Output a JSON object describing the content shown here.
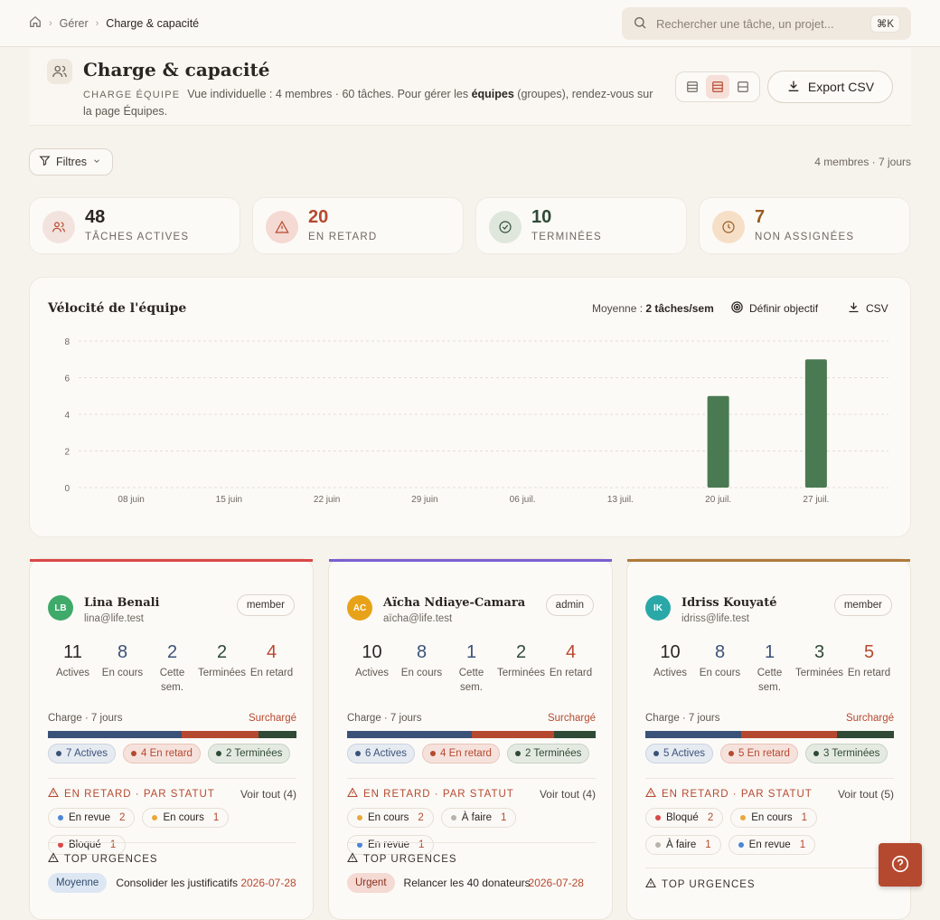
{
  "breadcrumb": {
    "items": [
      "Gérer",
      "Charge & capacité"
    ]
  },
  "search": {
    "placeholder": "Rechercher une tâche, un projet...",
    "shortcut": "⌘K"
  },
  "header": {
    "title": "Charge & capacité",
    "kicker": "CHARGE ÉQUIPE",
    "desc_1": "Vue individuelle : 4 membres · 60 tâches. Pour gérer les ",
    "desc_bold": "équipes",
    "desc_2": " (groupes), rendez-vous sur la page Équipes.",
    "export_label": "Export CSV",
    "view_selected": "rows"
  },
  "toolbar": {
    "filters_label": "Filtres",
    "meta": "4 membres · 7 jours"
  },
  "stats": [
    {
      "value": "48",
      "label": "TÂCHES ACTIVES",
      "color": "#2b2622",
      "bg": "#f3e3de",
      "icon": "users-icon"
    },
    {
      "value": "20",
      "label": "EN RETARD",
      "color": "#b5492f",
      "bg": "#f5d9d3",
      "icon": "alert-triangle-icon"
    },
    {
      "value": "10",
      "label": "TERMINÉES",
      "color": "#2f4a35",
      "bg": "#dfe7dc",
      "icon": "check-circle-icon"
    },
    {
      "value": "7",
      "label": "NON ASSIGNÉES",
      "color": "#9a5a1e",
      "bg": "#f6dfc7",
      "icon": "clock-icon"
    }
  ],
  "velocity": {
    "title": "Vélocité de l'équipe",
    "avg_label": "Moyenne : ",
    "avg_value": "2 tâches/sem",
    "goal_label": "Définir objectif",
    "csv_label": "CSV"
  },
  "chart_data": {
    "type": "bar",
    "categories": [
      "08 juin",
      "15 juin",
      "22 juin",
      "29 juin",
      "06 juil.",
      "13 juil.",
      "20 juil.",
      "27 juil."
    ],
    "values": [
      0,
      0,
      0,
      0,
      0,
      0,
      5,
      7
    ],
    "ylim": [
      0,
      8
    ],
    "yticks": [
      0,
      2,
      4,
      6,
      8
    ],
    "grid": true,
    "color": "#4a7a52"
  },
  "members": [
    {
      "stripe": "#d94848",
      "initials": "LB",
      "avatar_bg": "#3faa6a",
      "name": "Lina Benali",
      "email": "lina@life.test",
      "role": "member",
      "metrics": [
        {
          "v": "11",
          "l": "Actives",
          "c": "#2b2622"
        },
        {
          "v": "8",
          "l": "En cours",
          "c": "#3b5278"
        },
        {
          "v": "2",
          "l": "Cette sem.",
          "c": "#3b5278"
        },
        {
          "v": "2",
          "l": "Terminées",
          "c": "#2f4a35"
        },
        {
          "v": "4",
          "l": "En retard",
          "c": "#b5492f"
        }
      ],
      "charge_label": "Charge · 7 jours",
      "charge_status": "Surchargé",
      "bar": [
        7,
        4,
        2
      ],
      "pills": [
        "7 Actives",
        "4 En retard",
        "2 Terminées"
      ],
      "late_title": "EN RETARD · PAR STATUT",
      "late_link": "Voir tout (4)",
      "late": [
        {
          "label": "En revue",
          "count": "2",
          "dot": "#4a86d9"
        },
        {
          "label": "En cours",
          "count": "1",
          "dot": "#e8a83a"
        },
        {
          "label": "Bloqué",
          "count": "1",
          "dot": "#d94848"
        }
      ],
      "top_title": "TOP URGENCES",
      "urgent": {
        "badge": "Moyenne",
        "badge_bg": "#dde7f3",
        "badge_fg": "#2f4a6e",
        "task": "Consolider les justificatifs",
        "date": "2026-07-28"
      }
    },
    {
      "stripe": "#7b5fd0",
      "initials": "AC",
      "avatar_bg": "#e8a21a",
      "name": "Aïcha Ndiaye-Camara",
      "email": "aïcha@life.test",
      "role": "admin",
      "metrics": [
        {
          "v": "10",
          "l": "Actives",
          "c": "#2b2622"
        },
        {
          "v": "8",
          "l": "En cours",
          "c": "#3b5278"
        },
        {
          "v": "1",
          "l": "Cette sem.",
          "c": "#3b5278"
        },
        {
          "v": "2",
          "l": "Terminées",
          "c": "#2f4a35"
        },
        {
          "v": "4",
          "l": "En retard",
          "c": "#b5492f"
        }
      ],
      "charge_label": "Charge · 7 jours",
      "charge_status": "Surchargé",
      "bar": [
        6,
        4,
        2
      ],
      "pills": [
        "6 Actives",
        "4 En retard",
        "2 Terminées"
      ],
      "late_title": "EN RETARD · PAR STATUT",
      "late_link": "Voir tout (4)",
      "late": [
        {
          "label": "En cours",
          "count": "2",
          "dot": "#e8a83a"
        },
        {
          "label": "À faire",
          "count": "1",
          "dot": "#b8b2aa"
        },
        {
          "label": "En revue",
          "count": "1",
          "dot": "#4a86d9"
        }
      ],
      "top_title": "TOP URGENCES",
      "urgent": {
        "badge": "Urgent",
        "badge_bg": "#f5d9d3",
        "badge_fg": "#8a2f1f",
        "task": "Relancer les 40 donateurs",
        "date": "2026-07-28"
      }
    },
    {
      "stripe": "#b07a3a",
      "initials": "IK",
      "avatar_bg": "#2aa8a8",
      "name": "Idriss Kouyaté",
      "email": "idriss@life.test",
      "role": "member",
      "metrics": [
        {
          "v": "10",
          "l": "Actives",
          "c": "#2b2622"
        },
        {
          "v": "8",
          "l": "En cours",
          "c": "#3b5278"
        },
        {
          "v": "1",
          "l": "Cette sem.",
          "c": "#3b5278"
        },
        {
          "v": "3",
          "l": "Terminées",
          "c": "#2f4a35"
        },
        {
          "v": "5",
          "l": "En retard",
          "c": "#b5492f"
        }
      ],
      "charge_label": "Charge · 7 jours",
      "charge_status": "Surchargé",
      "bar": [
        5,
        5,
        3
      ],
      "pills": [
        "5 Actives",
        "5 En retard",
        "3 Terminées"
      ],
      "late_title": "EN RETARD · PAR STATUT",
      "late_link": "Voir tout (5)",
      "late": [
        {
          "label": "Bloqué",
          "count": "2",
          "dot": "#d94848"
        },
        {
          "label": "En cours",
          "count": "1",
          "dot": "#e8a83a"
        },
        {
          "label": "À faire",
          "count": "1",
          "dot": "#b8b2aa"
        },
        {
          "label": "En revue",
          "count": "1",
          "dot": "#4a86d9"
        }
      ],
      "top_title": "TOP URGENCES",
      "urgent": null
    }
  ]
}
